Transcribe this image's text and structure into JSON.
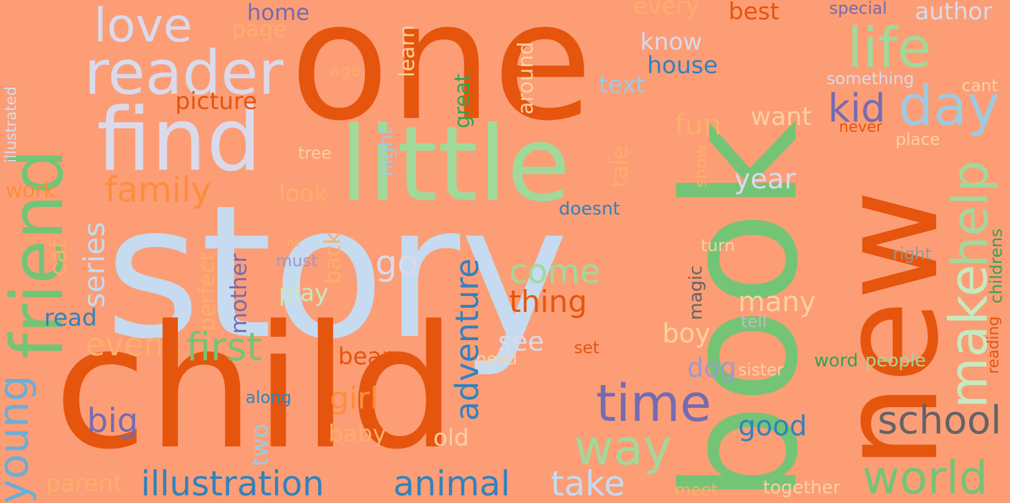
{
  "colors": {
    "background": "#fc9d76",
    "dark_orange": "#e6550d",
    "orange": "#fd8d3c",
    "light_orange": "#fdae6b",
    "peach": "#fdd0a2",
    "green": "#74c476",
    "dark_green": "#31a354",
    "light_green": "#a1d99b",
    "pale_green": "#c7e9c0",
    "blue": "#3182bd",
    "sky_blue": "#6baed6",
    "light_blue": "#9ecae1",
    "pale_blue": "#c6dbef",
    "purple": "#756bb1",
    "light_purple": "#9e9ac8",
    "lavender": "#dadaeb",
    "gray": "#636363",
    "mid_gray": "#969696",
    "light_gray": "#bdbdbd"
  },
  "words": {
    "story": "story",
    "book": "book",
    "one": "one",
    "child": "child",
    "new": "new",
    "little": "little",
    "find": "find",
    "friend": "friend",
    "reader": "reader",
    "love": "love",
    "life": "life",
    "day": "day",
    "make": "make",
    "help": "help",
    "time": "time",
    "world": "world",
    "school": "school",
    "way": "way",
    "family": "family",
    "first": "first",
    "young": "young",
    "illustration": "illustration",
    "animal": "animal",
    "adventure": "adventure",
    "kid": "kid",
    "take": "take",
    "come": "come",
    "thing": "thing",
    "girl": "girl",
    "go": "go",
    "even": "even",
    "series": "series",
    "big": "big",
    "good": "good",
    "many": "many",
    "year": "year",
    "fun": "fun",
    "see": "see",
    "home": "home",
    "best": "best",
    "author": "author",
    "special": "special",
    "every": "every",
    "page": "page",
    "know": "know",
    "house": "house",
    "text": "text",
    "something": "something",
    "cant": "cant",
    "want": "want",
    "never": "never",
    "place": "place",
    "picture": "picture",
    "age": "age",
    "learn": "learn",
    "around": "around",
    "great": "great",
    "night": "night",
    "tree": "tree",
    "tale": "tale",
    "show": "show",
    "work": "work",
    "look": "look",
    "doesnt": "doesnt",
    "cat": "cat",
    "perfect": "perfect",
    "mother": "mother",
    "back": "back",
    "must": "must",
    "play": "play",
    "read": "read",
    "turn": "turn",
    "right": "right",
    "magic": "magic",
    "tell": "tell",
    "boy": "boy",
    "childrens": "childrens",
    "reading": "reading",
    "bear": "bear",
    "need": "need",
    "set": "set",
    "dog": "dog",
    "sister": "sister",
    "word": "word",
    "people": "people",
    "along": "along",
    "two": "two",
    "baby": "baby",
    "old": "old",
    "parent": "parent",
    "meet": "meet",
    "together": "together",
    "illustrated": "illustrated",
    "ne": "ne"
  }
}
